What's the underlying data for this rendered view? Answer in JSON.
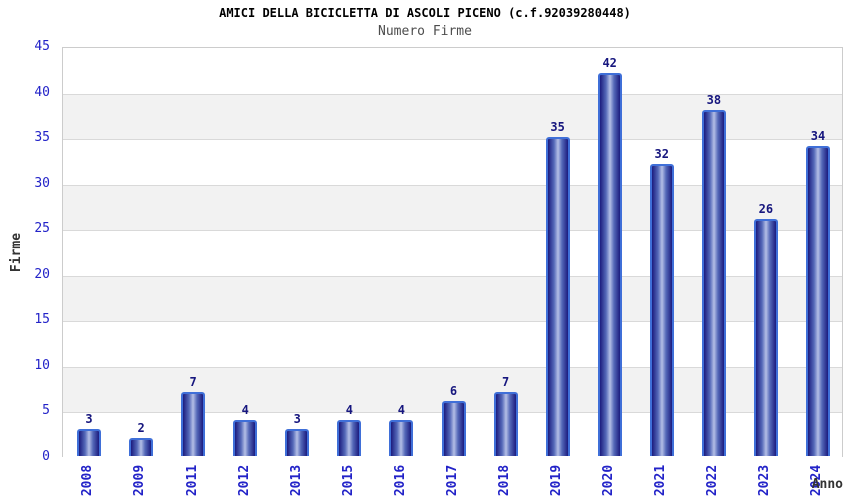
{
  "chart_data": {
    "type": "bar",
    "title": "AMICI DELLA BICICLETTA DI ASCOLI PICENO (c.f.92039280448)",
    "subtitle": "Numero Firme",
    "xlabel": "Anno",
    "ylabel": "Firme",
    "categories": [
      "2008",
      "2009",
      "2011",
      "2012",
      "2013",
      "2015",
      "2016",
      "2017",
      "2018",
      "2019",
      "2020",
      "2021",
      "2022",
      "2023",
      "2024"
    ],
    "values": [
      3,
      2,
      7,
      4,
      3,
      4,
      4,
      6,
      7,
      35,
      42,
      32,
      38,
      26,
      34
    ],
    "ylim": [
      0,
      45
    ],
    "ytick_step": 5,
    "legend": "none",
    "grid": "horizontal-bands-alternating",
    "colors": {
      "tick_label": "#2323c8",
      "value_label": "#16167e",
      "bar_edge": "#1b1b7e",
      "bar_highlight": "#b4bfe6",
      "bar_border": "#3f6fd8",
      "band_alt": "#f2f2f2",
      "gridline": "#d9d9d9",
      "frame": "#cccccc",
      "title_color": "#000000",
      "subtitle_color": "#4d4d4d",
      "axis_title_color": "#333333"
    }
  }
}
